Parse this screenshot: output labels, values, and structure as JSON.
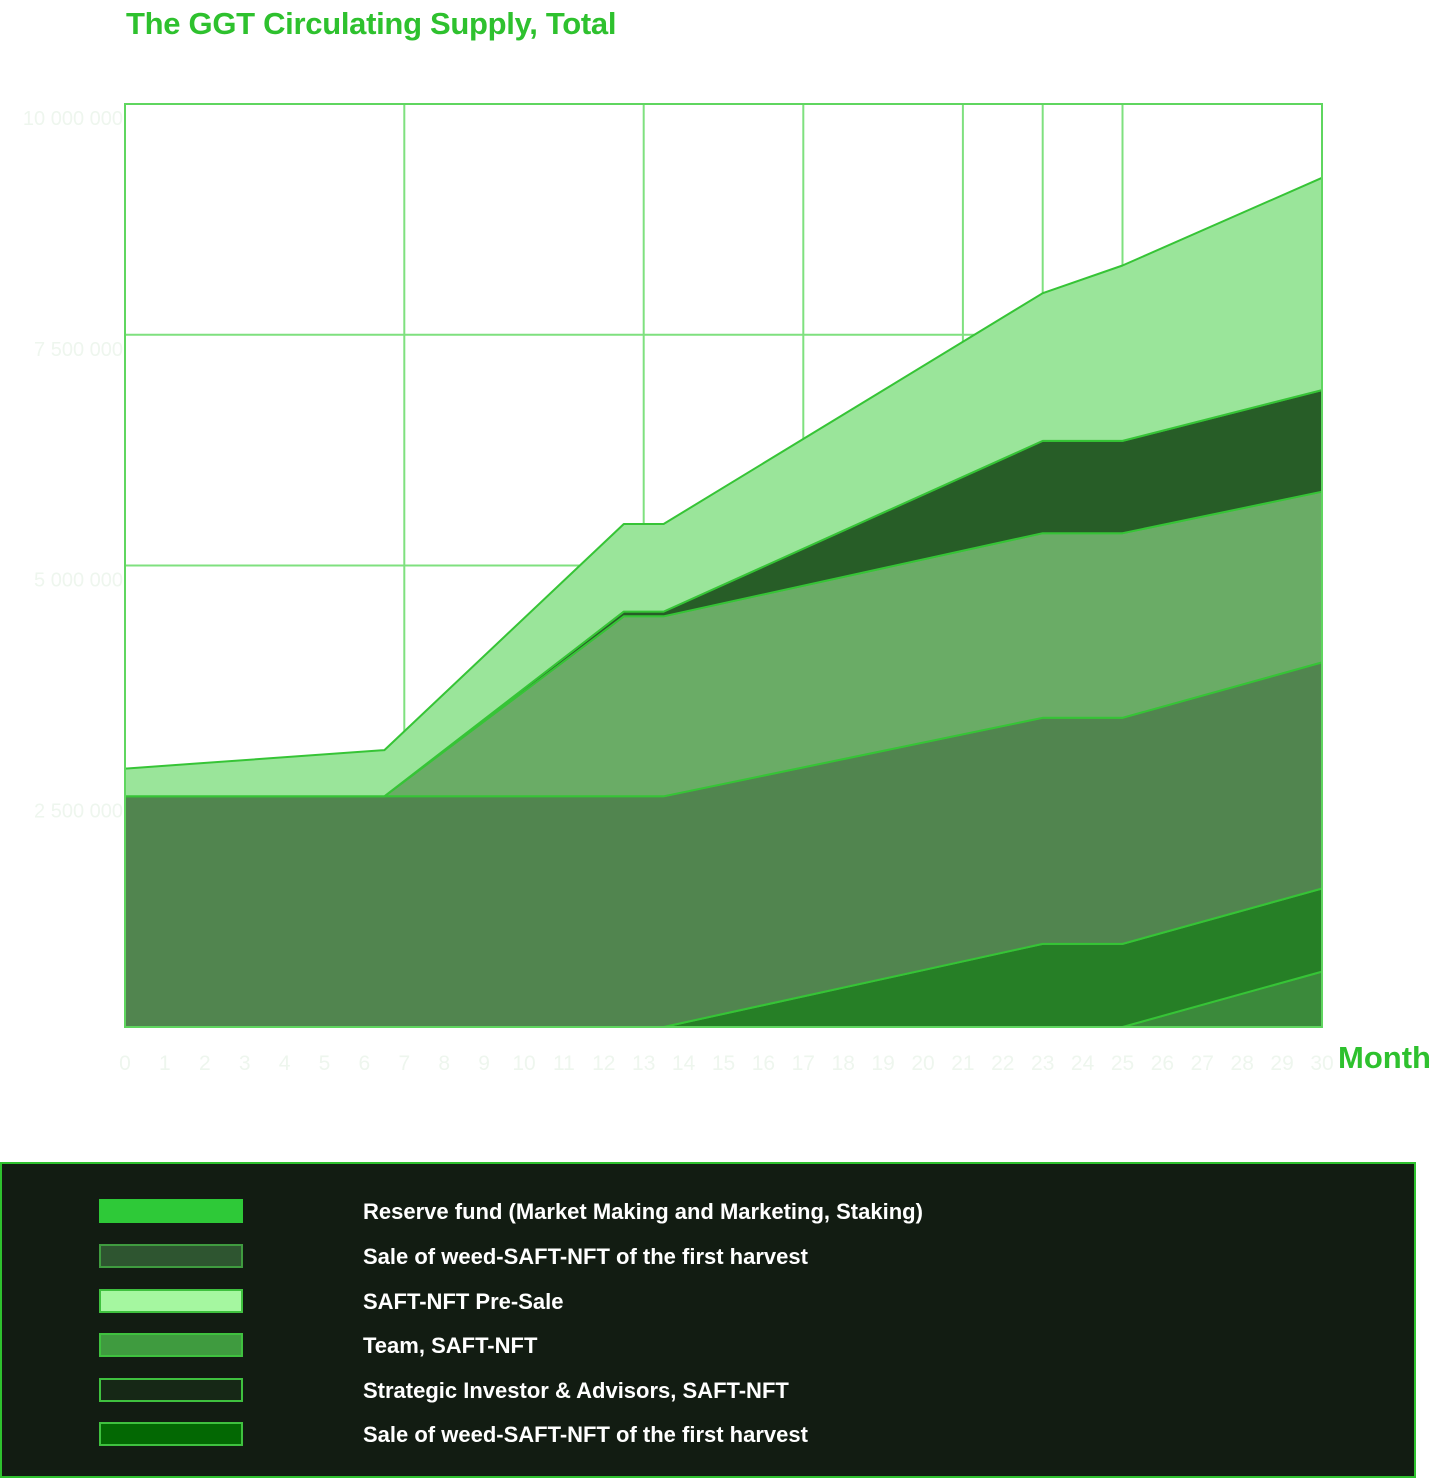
{
  "title": "The GGT Circulating Supply, Total",
  "chart_data": {
    "type": "area",
    "stacked": true,
    "title": "The GGT Circulating Supply, Total",
    "xlabel": "Month",
    "ylabel": "",
    "x": [
      0,
      6.5,
      12.5,
      13.5,
      23,
      25,
      30
    ],
    "x_ticks": [
      "0",
      "1",
      "2",
      "3",
      "4",
      "5",
      "6",
      "7",
      "8",
      "9",
      "10",
      "11",
      "12",
      "13",
      "14",
      "15",
      "16",
      "17",
      "18",
      "19",
      "20",
      "21",
      "22",
      "23",
      "24",
      "25",
      "26",
      "27",
      "28",
      "29",
      "30"
    ],
    "y_ticks": [
      "10 000 000",
      "7 500 000",
      "5 000 000",
      "2 500 000"
    ],
    "y_tick_values": [
      10000000,
      7500000,
      5000000,
      2500000
    ],
    "ylim": [
      0,
      10000000
    ],
    "grid": true,
    "series": [
      {
        "name": "Sale of weed-SAFT-NFT of the first harvest",
        "color": "#3b8a3b",
        "values": [
          0,
          0,
          0,
          0,
          0,
          0,
          600000
        ]
      },
      {
        "name": "Sale of weed-SAFT-NFT of the first harvest",
        "color": "#267f26",
        "values": [
          0,
          0,
          0,
          0,
          900000,
          900000,
          900000
        ]
      },
      {
        "name": "Team, SAFT-NFT",
        "color": "#51854f",
        "values": [
          2500000,
          2500000,
          2500000,
          2500000,
          2450000,
          2450000,
          2450000
        ]
      },
      {
        "name": "Strategic Investor & Advisors, SAFT-NFT",
        "color": "#6aac66",
        "values": [
          0,
          0,
          1950000,
          1950000,
          2000000,
          2000000,
          1850000
        ]
      },
      {
        "name": "Reserve fund (Market Making and Marketing, Staking)",
        "color": "#275d27",
        "values": [
          0,
          0,
          50000,
          50000,
          1000000,
          1000000,
          1100000
        ]
      },
      {
        "name": "SAFT-NFT Pre-Sale",
        "color": "#9ae59a",
        "values": [
          300000,
          500000,
          950000,
          950000,
          1600000,
          1900000,
          2300000
        ]
      }
    ]
  },
  "legend": [
    {
      "label": "Reserve fund (Market Making and Marketing, Staking)",
      "fill": "#2ec938",
      "border": "#2ec938"
    },
    {
      "label": "Sale of weed-SAFT-NFT of the first harvest",
      "fill": "#2e5530",
      "border": "#3f9b3f"
    },
    {
      "label": "SAFT-NFT Pre-Sale",
      "fill": "#a5f7a0",
      "border": "#3fc13f"
    },
    {
      "label": "Team, SAFT-NFT",
      "fill": "#3f9b3f",
      "border": "#3fc13f"
    },
    {
      "label": "Strategic Investor & Advisors, SAFT-NFT",
      "fill": "#162816",
      "border": "#3fc13f"
    },
    {
      "label": "Sale of weed-SAFT-NFT of the first harvest",
      "fill": "#036803",
      "border": "#3fc13f"
    }
  ]
}
